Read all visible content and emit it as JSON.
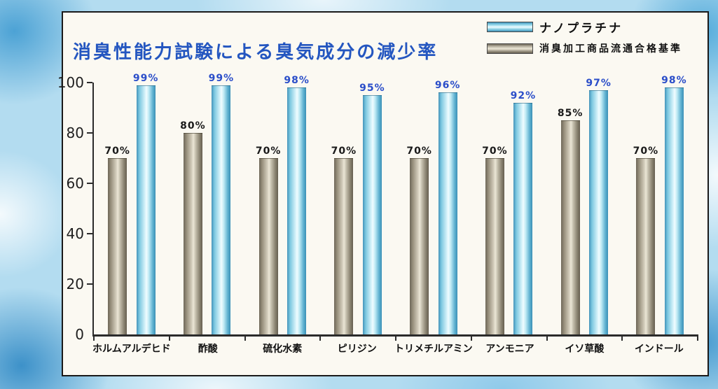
{
  "chart_data": {
    "type": "bar",
    "title": "消臭性能力試験による臭気成分の減少率",
    "unit": "%",
    "categories": [
      "ホルムアルデヒド",
      "酢酸",
      "硫化水素",
      "ピリジン",
      "トリメチルアミン",
      "アンモニア",
      "イソ草酸",
      "インドール"
    ],
    "series": [
      {
        "name": "消臭加工商品流通合格基準",
        "values": [
          70,
          80,
          70,
          70,
          70,
          70,
          85,
          70
        ],
        "color": "#8a8371",
        "label_color": "#1a1a1a"
      },
      {
        "name": "ナノプラチナ",
        "values": [
          99,
          99,
          98,
          95,
          96,
          92,
          97,
          98
        ],
        "color": "#62b4d2",
        "label_color": "#2b4ec9"
      }
    ],
    "ylim": [
      0,
      100
    ],
    "yticks": [
      0,
      20,
      40,
      60,
      80,
      100
    ],
    "grid": false,
    "legend_position": "top-right",
    "legend_order": [
      1,
      0
    ]
  },
  "colors": {
    "title": "#2456c0",
    "panel_background": "#fbf9f2",
    "panel_border": "#1a1a1a",
    "axis": "#2b2b2b",
    "page_background": "#b3dcf0"
  }
}
